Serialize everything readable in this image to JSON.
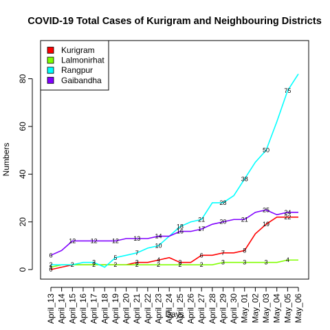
{
  "chart_data": {
    "type": "line",
    "title": "COVID-19 Total Cases of Kurigram and Neighbouring Districts",
    "xlabel": "Days",
    "ylabel": "Numbers",
    "categories": [
      "April_13",
      "April_14",
      "April_15",
      "April_16",
      "April_17",
      "April_18",
      "April_19",
      "April_20",
      "April_21",
      "April_22",
      "April_23",
      "April_24",
      "April_25",
      "April_26",
      "April_27",
      "April_28",
      "April_29",
      "April_30",
      "May_01",
      "May_02",
      "May_03",
      "May_04",
      "May_05",
      "May_06"
    ],
    "ylim": [
      -4,
      96
    ],
    "yticks": [
      0,
      20,
      40,
      60,
      80
    ],
    "grid": false,
    "legend_position": "top-left",
    "series": [
      {
        "name": "Kurigram",
        "color": "#ff0000",
        "values": [
          0,
          1,
          2,
          2,
          2,
          2,
          2,
          2,
          3,
          3,
          4,
          5,
          3,
          3,
          6,
          6,
          7,
          7,
          8,
          15,
          19,
          22,
          22,
          22
        ]
      },
      {
        "name": "Lalmonirhat",
        "color": "#80ff00",
        "values": [
          1,
          2,
          2,
          2,
          2,
          2,
          2,
          2,
          2,
          2,
          2,
          2,
          2,
          2,
          2,
          2,
          3,
          3,
          3,
          3,
          3,
          3,
          4,
          4
        ]
      },
      {
        "name": "Rangpur",
        "color": "#00ffff",
        "values": [
          2,
          2,
          2,
          3,
          3,
          1,
          5,
          6,
          7,
          9,
          10,
          14,
          18,
          20,
          21,
          28,
          28,
          31,
          38,
          45,
          50,
          62,
          75,
          82
        ]
      },
      {
        "name": "Gaibandha",
        "color": "#8000ff",
        "values": [
          6,
          8,
          12,
          12,
          12,
          12,
          12,
          13,
          13,
          13,
          14,
          14,
          16,
          16,
          17,
          19,
          20,
          21,
          21,
          24,
          25,
          23,
          24,
          24
        ]
      }
    ],
    "data_labels": [
      {
        "series": 0,
        "index": 0,
        "text": "0"
      },
      {
        "series": 0,
        "index": 8,
        "text": "3"
      },
      {
        "series": 0,
        "index": 10,
        "text": "4"
      },
      {
        "series": 0,
        "index": 12,
        "text": "3"
      },
      {
        "series": 0,
        "index": 14,
        "text": "6"
      },
      {
        "series": 0,
        "index": 16,
        "text": "7"
      },
      {
        "series": 0,
        "index": 18,
        "text": "8"
      },
      {
        "series": 0,
        "index": 20,
        "text": "19"
      },
      {
        "series": 0,
        "index": 22,
        "text": "22"
      },
      {
        "series": 1,
        "index": 0,
        "text": "1"
      },
      {
        "series": 1,
        "index": 2,
        "text": "2"
      },
      {
        "series": 1,
        "index": 4,
        "text": "2"
      },
      {
        "series": 1,
        "index": 6,
        "text": "2"
      },
      {
        "series": 1,
        "index": 8,
        "text": "2"
      },
      {
        "series": 1,
        "index": 10,
        "text": "2"
      },
      {
        "series": 1,
        "index": 12,
        "text": "2"
      },
      {
        "series": 1,
        "index": 14,
        "text": "2"
      },
      {
        "series": 1,
        "index": 16,
        "text": "3"
      },
      {
        "series": 1,
        "index": 18,
        "text": "3"
      },
      {
        "series": 1,
        "index": 20,
        "text": "3"
      },
      {
        "series": 1,
        "index": 22,
        "text": "4"
      },
      {
        "series": 2,
        "index": 0,
        "text": "2"
      },
      {
        "series": 2,
        "index": 4,
        "text": "3"
      },
      {
        "series": 2,
        "index": 6,
        "text": "5"
      },
      {
        "series": 2,
        "index": 8,
        "text": "7"
      },
      {
        "series": 2,
        "index": 10,
        "text": "10"
      },
      {
        "series": 2,
        "index": 12,
        "text": "18"
      },
      {
        "series": 2,
        "index": 14,
        "text": "21"
      },
      {
        "series": 2,
        "index": 16,
        "text": "28"
      },
      {
        "series": 2,
        "index": 18,
        "text": "38"
      },
      {
        "series": 2,
        "index": 20,
        "text": "50"
      },
      {
        "series": 2,
        "index": 22,
        "text": "75"
      },
      {
        "series": 3,
        "index": 0,
        "text": "6"
      },
      {
        "series": 3,
        "index": 2,
        "text": "12"
      },
      {
        "series": 3,
        "index": 4,
        "text": "12"
      },
      {
        "series": 3,
        "index": 6,
        "text": "12"
      },
      {
        "series": 3,
        "index": 8,
        "text": "13"
      },
      {
        "series": 3,
        "index": 10,
        "text": "14"
      },
      {
        "series": 3,
        "index": 12,
        "text": "16"
      },
      {
        "series": 3,
        "index": 14,
        "text": "17"
      },
      {
        "series": 3,
        "index": 16,
        "text": "20"
      },
      {
        "series": 3,
        "index": 18,
        "text": "21"
      },
      {
        "series": 3,
        "index": 20,
        "text": "25"
      },
      {
        "series": 3,
        "index": 22,
        "text": "24"
      }
    ]
  }
}
